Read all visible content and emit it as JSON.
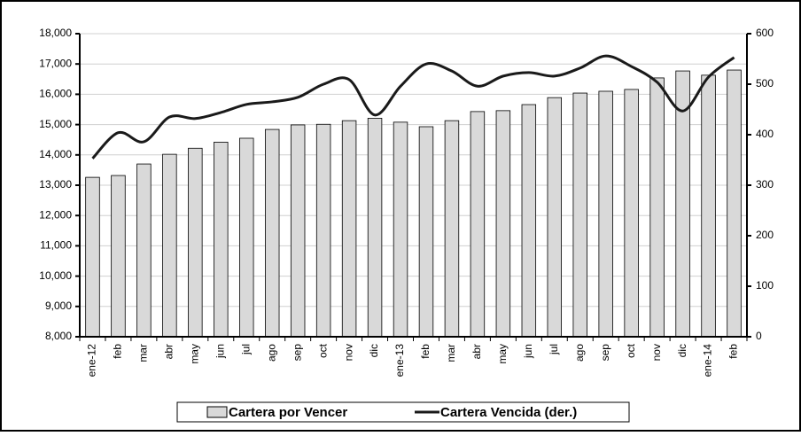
{
  "chart_data": {
    "type": "bar-line",
    "categories": [
      "ene-12",
      "feb",
      "mar",
      "abr",
      "may",
      "jun",
      "jul",
      "ago",
      "sep",
      "oct",
      "nov",
      "dic",
      "ene-13",
      "feb",
      "mar",
      "abr",
      "may",
      "jun",
      "jul",
      "ago",
      "sep",
      "oct",
      "nov",
      "dic",
      "ene-14",
      "feb"
    ],
    "series": [
      {
        "name": "Cartera por Vencer",
        "type": "bar",
        "color": "#d9d9d9",
        "axis": "y",
        "values": [
          13260,
          13320,
          13700,
          14020,
          14220,
          14420,
          14550,
          14840,
          14990,
          15010,
          15130,
          15210,
          15080,
          14930,
          15130,
          15430,
          15460,
          15660,
          15890,
          16040,
          16100,
          16160,
          16540,
          16770,
          16630,
          16800
        ]
      },
      {
        "name": "Cartera Vencida (der.)",
        "type": "line",
        "color": "#1a1a1a",
        "axis": "y2",
        "values": [
          353,
          404,
          386,
          435,
          432,
          444,
          460,
          465,
          474,
          500,
          509,
          439,
          496,
          540,
          526,
          496,
          516,
          523,
          516,
          532,
          556,
          535,
          504,
          447,
          514,
          553
        ]
      }
    ],
    "ylim": [
      8000,
      18000
    ],
    "yticks": [
      {
        "value": 8000,
        "label": "8,000"
      },
      {
        "value": 9000,
        "label": "9,000"
      },
      {
        "value": 10000,
        "label": "10,000"
      },
      {
        "value": 11000,
        "label": "11,000"
      },
      {
        "value": 12000,
        "label": "12,000"
      },
      {
        "value": 13000,
        "label": "13,000"
      },
      {
        "value": 14000,
        "label": "14,000"
      },
      {
        "value": 15000,
        "label": "15,000"
      },
      {
        "value": 16000,
        "label": "16,000"
      },
      {
        "value": 17000,
        "label": "17,000"
      },
      {
        "value": 18000,
        "label": "18,000"
      }
    ],
    "y2lim": [
      0,
      600
    ],
    "y2ticks": [
      0,
      100,
      200,
      300,
      400,
      500,
      600
    ],
    "grid": true,
    "legend": "bottom"
  }
}
